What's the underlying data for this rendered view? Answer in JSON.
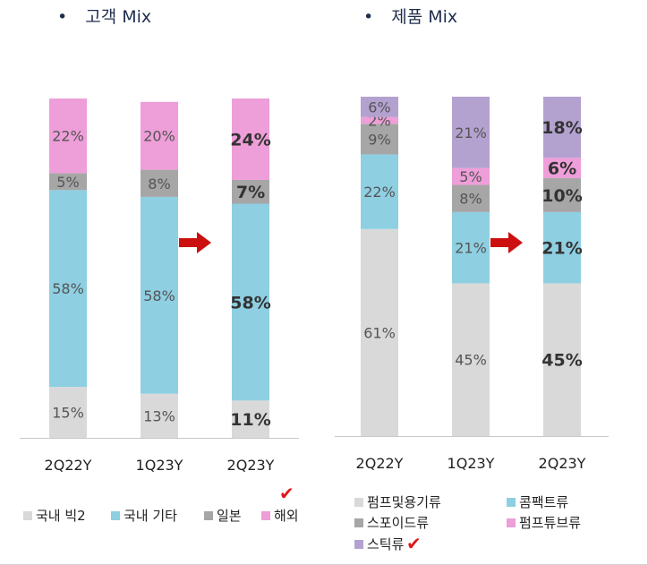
{
  "panels": {
    "left_title": "고객 Mix",
    "right_title": "제품 Mix",
    "bullet": "•"
  },
  "colors": {
    "pink": "#ee9ed8",
    "gray": "#a6a6a6",
    "cyan": "#8ecfe2",
    "light": "#d9d9d9",
    "purple": "#b3a2cf",
    "arrow": "#cc1010",
    "check": "#e01818"
  },
  "chart_data": [
    {
      "type": "bar",
      "stacked": true,
      "title": "고객 Mix",
      "categories": [
        "2Q22Y",
        "1Q23Y",
        "2Q23Y"
      ],
      "series": [
        {
          "name": "국내 빅2",
          "values": [
            15,
            13,
            11
          ],
          "labels": [
            "15%",
            "13%",
            "11%"
          ],
          "color": "light"
        },
        {
          "name": "국내 기타",
          "values": [
            58,
            58,
            58
          ],
          "labels": [
            "58%",
            "58%",
            "58%"
          ],
          "color": "cyan"
        },
        {
          "name": "일본",
          "values": [
            5,
            8,
            7
          ],
          "labels": [
            "5%",
            "8%",
            "7%"
          ],
          "color": "gray"
        },
        {
          "name": "해외",
          "values": [
            22,
            20,
            24
          ],
          "labels": [
            "22%",
            "20%",
            "24%"
          ],
          "color": "pink"
        }
      ],
      "highlight_category": "2Q23Y",
      "ylim": [
        0,
        100
      ]
    },
    {
      "type": "bar",
      "stacked": true,
      "title": "제품 Mix",
      "categories": [
        "2Q22Y",
        "1Q23Y",
        "2Q23Y"
      ],
      "series": [
        {
          "name": "펌프및용기류",
          "values": [
            61,
            45,
            45
          ],
          "labels": [
            "61%",
            "45%",
            "45%"
          ],
          "color": "light"
        },
        {
          "name": "콤팩트류",
          "values": [
            22,
            21,
            21
          ],
          "labels": [
            "22%",
            "21%",
            "21%"
          ],
          "color": "cyan"
        },
        {
          "name": "스포이드류",
          "values": [
            9,
            8,
            10
          ],
          "labels": [
            "9%",
            "8%",
            "10%"
          ],
          "color": "gray"
        },
        {
          "name": "펌프튜브류",
          "values": [
            2,
            5,
            6
          ],
          "labels": [
            "2%",
            "5%",
            "6%"
          ],
          "color": "pink"
        },
        {
          "name": "스틱류",
          "values": [
            6,
            21,
            18
          ],
          "labels": [
            "6%",
            "21%",
            "18%"
          ],
          "color": "purple"
        }
      ],
      "highlight_category": "2Q23Y",
      "ylim": [
        0,
        100
      ]
    }
  ],
  "legend_left": {
    "items": [
      "국내 빅2",
      "국내 기타",
      "일본",
      "해외"
    ],
    "checked": "해외"
  },
  "legend_right": {
    "items": [
      "펌프및용기류",
      "콤팩트류",
      "스포이드류",
      "펌프튜브류",
      "스틱류"
    ],
    "checked": "스틱류"
  },
  "marks": {
    "check": "✔"
  }
}
